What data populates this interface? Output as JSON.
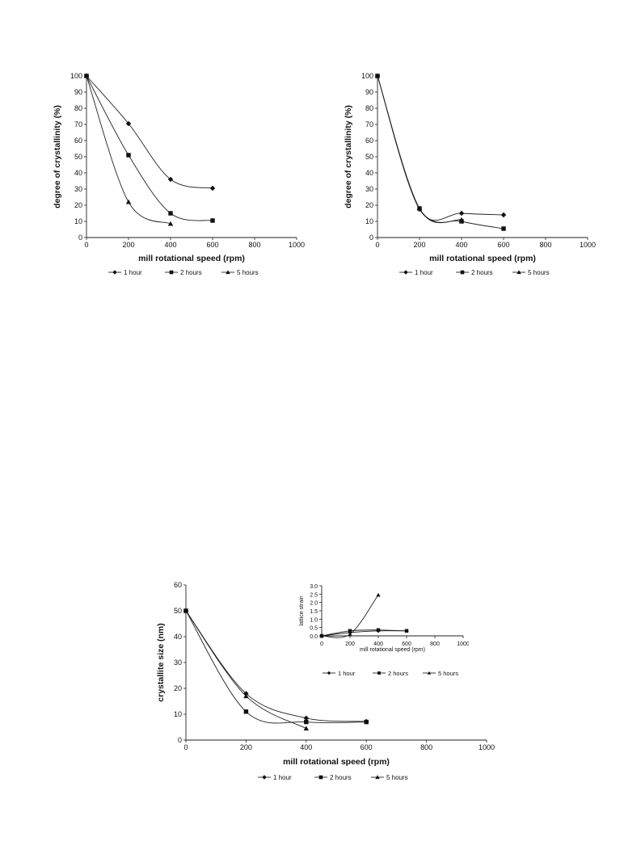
{
  "chart_data": [
    {
      "id": "chart1",
      "type": "line",
      "title": "",
      "xlabel": "mill rotational speed (rpm)",
      "ylabel": "degree of crystallinity (%)",
      "xlim": [
        0,
        1000
      ],
      "ylim": [
        0,
        100
      ],
      "xticks": [
        0,
        200,
        400,
        600,
        800,
        1000
      ],
      "yticks": [
        0,
        10,
        20,
        30,
        40,
        50,
        60,
        70,
        80,
        90,
        100
      ],
      "legend_position": "bottom",
      "series": [
        {
          "name": "1 hour",
          "marker": "diamond",
          "x": [
            0,
            200,
            400,
            600
          ],
          "y": [
            100,
            70.5,
            36,
            30.5
          ]
        },
        {
          "name": "2 hours",
          "marker": "square",
          "x": [
            0,
            200,
            400,
            600
          ],
          "y": [
            100,
            51,
            15,
            10.5
          ]
        },
        {
          "name": "5 hours",
          "marker": "triangle",
          "x": [
            0,
            200,
            400
          ],
          "y": [
            100,
            22,
            8.5
          ]
        }
      ]
    },
    {
      "id": "chart2",
      "type": "line",
      "title": "",
      "xlabel": "mill rotational speed (rpm)",
      "ylabel": "degree of crystallinity (%)",
      "xlim": [
        0,
        1000
      ],
      "ylim": [
        0,
        100
      ],
      "xticks": [
        0,
        200,
        400,
        600,
        800,
        1000
      ],
      "yticks": [
        0,
        10,
        20,
        30,
        40,
        50,
        60,
        70,
        80,
        90,
        100
      ],
      "legend_position": "bottom",
      "series": [
        {
          "name": "1 hour",
          "marker": "diamond",
          "x": [
            0,
            200,
            400,
            600
          ],
          "y": [
            100,
            17.5,
            15,
            14
          ]
        },
        {
          "name": "2 hours",
          "marker": "square",
          "x": [
            0,
            200,
            400,
            600
          ],
          "y": [
            100,
            18,
            10,
            5.5
          ]
        },
        {
          "name": "5 hours",
          "marker": "triangle",
          "x": [
            0,
            200,
            400
          ],
          "y": [
            100,
            18,
            11
          ]
        }
      ]
    },
    {
      "id": "chart3",
      "type": "line",
      "title": "",
      "xlabel": "mill rotational speed (rpm)",
      "ylabel": "crystallite size (nm)",
      "xlim": [
        0,
        1000
      ],
      "ylim": [
        0,
        60
      ],
      "xticks": [
        0,
        200,
        400,
        600,
        800,
        1000
      ],
      "yticks": [
        0,
        10,
        20,
        30,
        40,
        50,
        60
      ],
      "legend_position": "bottom",
      "series": [
        {
          "name": "1 hour",
          "marker": "diamond",
          "x": [
            0,
            200,
            400,
            600
          ],
          "y": [
            50,
            18,
            8.5,
            7.2
          ]
        },
        {
          "name": "2 hours",
          "marker": "square",
          "x": [
            0,
            200,
            400,
            600
          ],
          "y": [
            50,
            11,
            7,
            7
          ]
        },
        {
          "name": "5 hours",
          "marker": "triangle",
          "x": [
            0,
            200,
            400
          ],
          "y": [
            50,
            17,
            4.5
          ]
        }
      ]
    },
    {
      "id": "inset",
      "type": "line",
      "title": "",
      "xlabel": "mill rotational speed (rpm)",
      "ylabel": "lattice strain",
      "xlim": [
        0,
        1000
      ],
      "ylim": [
        0,
        3.0
      ],
      "xticks": [
        0,
        200,
        400,
        600,
        800,
        1000
      ],
      "yticks": [
        "0.0",
        "0.5",
        "1.0",
        "1.5",
        "2.0",
        "2.5",
        "3.0"
      ],
      "legend_position": "bottom",
      "series": [
        {
          "name": "1 hour",
          "marker": "diamond",
          "x": [
            0,
            200,
            400,
            600
          ],
          "y": [
            0,
            0.2,
            0.3,
            0.3
          ]
        },
        {
          "name": "2 hours",
          "marker": "square",
          "x": [
            0,
            200,
            400,
            600
          ],
          "y": [
            0,
            0.3,
            0.35,
            0.3
          ]
        },
        {
          "name": "5 hours",
          "marker": "triangle",
          "x": [
            0,
            200,
            400
          ],
          "y": [
            0,
            0.1,
            2.45
          ]
        }
      ]
    }
  ]
}
